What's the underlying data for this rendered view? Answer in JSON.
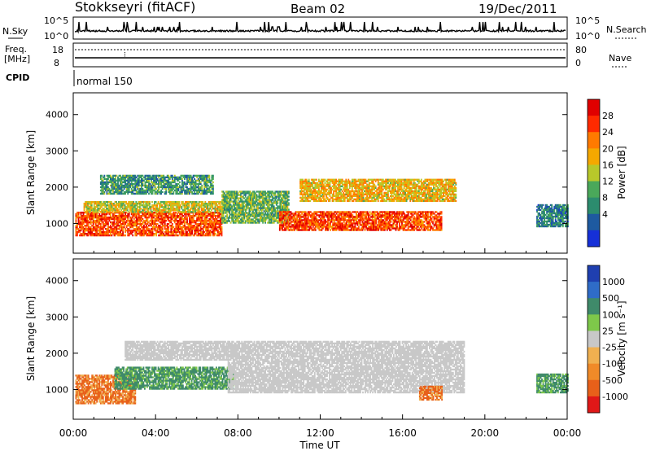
{
  "header": {
    "station": "Stokkseyri (fitACF)",
    "beam": "Beam 02",
    "date": "19/Dec/2011"
  },
  "nsky_panel": {
    "left_label": "N.Sky",
    "right_label": "N.Search",
    "left_ticks": [
      "10^5",
      "10^0"
    ],
    "right_ticks": [
      "10^5",
      "10^0"
    ]
  },
  "freq_panel": {
    "left_label_line1": "Freq.",
    "left_label_line2": "[MHz]",
    "right_label": "Nave",
    "left_ticks": [
      "18",
      "8"
    ],
    "right_ticks": [
      "80",
      "0"
    ]
  },
  "cpid_panel": {
    "label": "CPID",
    "program": "normal 150"
  },
  "chart_data": [
    {
      "type": "heatmap",
      "panel": "power",
      "ylabel": "Slant Range [km]",
      "xlabel": "",
      "ylim": [
        180,
        4600
      ],
      "yticks": [
        "4000",
        "3000",
        "2000",
        "1000"
      ],
      "colorbar": {
        "label": "Power [dB]",
        "ticks": [
          "28",
          "24",
          "20",
          "16",
          "12",
          "8",
          "4"
        ],
        "colors": [
          "#e00000",
          "#ff2a00",
          "#ff7a00",
          "#f5a800",
          "#b8c82a",
          "#4aa85a",
          "#2c8c6e",
          "#1e5aa0",
          "#1630d8"
        ]
      },
      "regions": [
        {
          "name": "core",
          "t_start": 0.1,
          "t_end": 7.2,
          "r_low": 650,
          "r_high": 1300,
          "value": 26
        },
        {
          "name": "inner",
          "t_start": 0.5,
          "t_end": 7.6,
          "r_low": 1300,
          "r_high": 1600,
          "value": 18
        },
        {
          "name": "outer",
          "t_start": 1.3,
          "t_end": 6.8,
          "r_low": 1800,
          "r_high": 2300,
          "value": 12
        },
        {
          "name": "mid",
          "t_start": 7.2,
          "t_end": 10.5,
          "r_low": 1000,
          "r_high": 1900,
          "value": 14
        },
        {
          "name": "evening_core",
          "t_start": 10.0,
          "t_end": 17.9,
          "r_low": 800,
          "r_high": 1300,
          "value": 26
        },
        {
          "name": "evening_upper",
          "t_start": 11.0,
          "t_end": 18.6,
          "r_low": 1600,
          "r_high": 2200,
          "value": 20
        },
        {
          "name": "late",
          "t_start": 22.5,
          "t_end": 24.0,
          "r_low": 900,
          "r_high": 1500,
          "value": 10
        }
      ]
    },
    {
      "type": "heatmap",
      "panel": "velocity",
      "ylabel": "Slant Range [km]",
      "xlabel": "Time UT",
      "ylim": [
        180,
        4600
      ],
      "yticks": [
        "4000",
        "3000",
        "2000",
        "1000"
      ],
      "xticks": [
        "00:00",
        "04:00",
        "08:00",
        "12:00",
        "16:00",
        "20:00",
        "00:00"
      ],
      "xlim": [
        0,
        24
      ],
      "colorbar": {
        "label": "Velocity [m s⁻¹]",
        "ticks": [
          "1000",
          "500",
          "100",
          "25",
          "-25",
          "-100",
          "-500",
          "-1000"
        ],
        "colors": [
          "#1f3fb0",
          "#2f6cc8",
          "#3f8a6a",
          "#7ec84a",
          "#c8c8c8",
          "#f0b050",
          "#f08a28",
          "#e8601a",
          "#e01818"
        ]
      },
      "regions": [
        {
          "name": "core",
          "t_start": 0.1,
          "t_end": 3.0,
          "r_low": 600,
          "r_high": 1400,
          "value": -500
        },
        {
          "name": "band",
          "t_start": 2.0,
          "t_end": 7.8,
          "r_low": 1000,
          "r_high": 1600,
          "value": 100
        },
        {
          "name": "grey_outer",
          "t_start": 2.5,
          "t_end": 7.5,
          "r_low": 1800,
          "r_high": 2300,
          "value": 0
        },
        {
          "name": "grey_big",
          "t_start": 7.5,
          "t_end": 19.0,
          "r_low": 900,
          "r_high": 2300,
          "value": 0
        },
        {
          "name": "eastward",
          "t_start": 16.8,
          "t_end": 17.9,
          "r_low": 700,
          "r_high": 1100,
          "value": -500
        },
        {
          "name": "late",
          "t_start": 22.5,
          "t_end": 24.0,
          "r_low": 900,
          "r_high": 1400,
          "value": 100
        }
      ]
    }
  ],
  "colors": {
    "axis": "#000000",
    "background": "#ffffff"
  }
}
